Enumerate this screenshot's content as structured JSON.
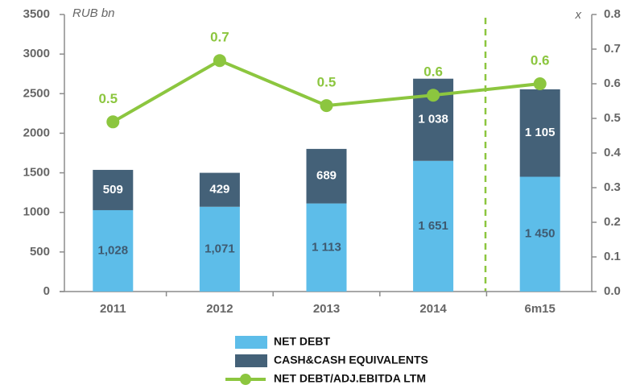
{
  "chart_data": {
    "type": "bar-line",
    "y_axis_label": "RUB bn",
    "y2_axis_label": "x",
    "categories": [
      "2011",
      "2012",
      "2013",
      "2014",
      "6m15"
    ],
    "series": [
      {
        "name": "NET DEBT",
        "color": "#5dbde9",
        "values": [
          1028,
          1071,
          1113,
          1651,
          1450
        ],
        "value_labels": [
          "1,028",
          "1,071",
          "1 113",
          "1 651",
          "1 450"
        ],
        "label_color": "#3f5a70"
      },
      {
        "name": "CASH&CASH EQUIVALENTS",
        "color": "#446178",
        "values": [
          509,
          429,
          689,
          1038,
          1105
        ],
        "value_labels": [
          "509",
          "429",
          "689",
          "1 038",
          "1 105"
        ],
        "label_color": "#ffffff"
      },
      {
        "name": "NET DEBT/ADJ.EBITDA LTM",
        "color": "#8cc63f",
        "axis": "y2",
        "type": "line",
        "values": [
          0.49,
          0.667,
          0.537,
          0.567,
          0.6
        ],
        "value_labels": [
          "0.5",
          "0.7",
          "0.5",
          "0.6",
          "0.6"
        ]
      }
    ],
    "ylim": [
      0,
      3500
    ],
    "yticks": [
      0,
      500,
      1000,
      1500,
      2000,
      2500,
      3000,
      3500
    ],
    "y2lim": [
      0,
      0.8
    ],
    "y2ticks": [
      {
        "value": 0,
        "label": "0.0"
      },
      0.1,
      0.2,
      0.3,
      0.4,
      0.5,
      0.6,
      0.7,
      0.8
    ],
    "stacked": true,
    "legend": "bottom"
  }
}
